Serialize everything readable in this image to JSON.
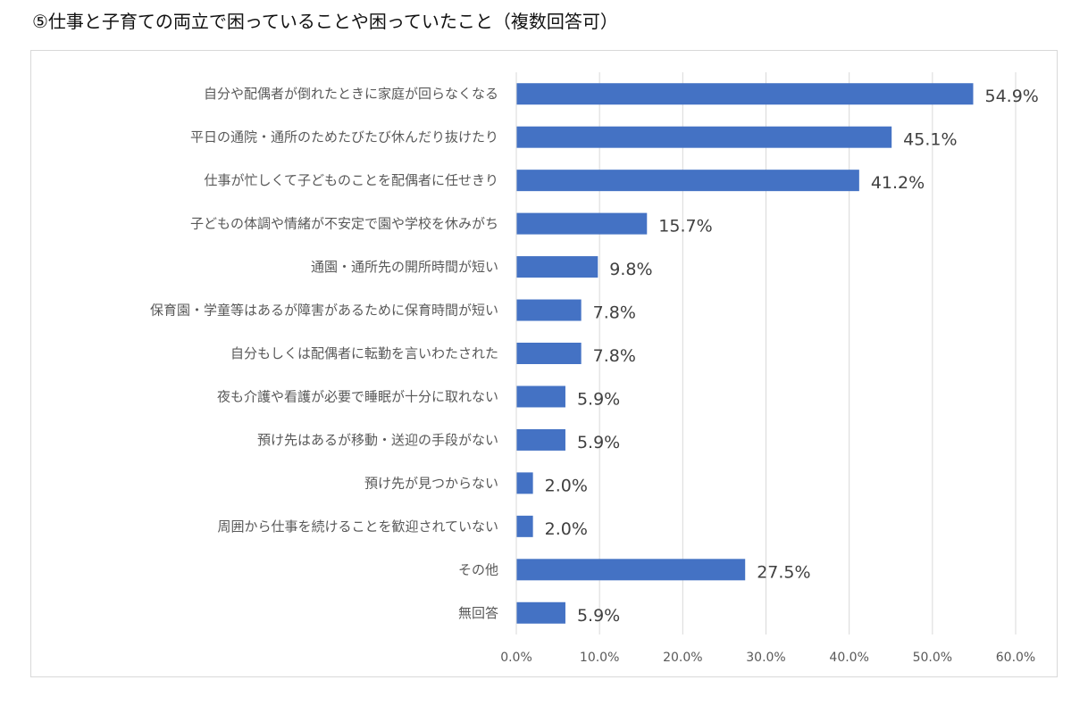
{
  "title": "⑤仕事と子育ての両立で困っていることや困っていたこと（複数回答可）",
  "colors": {
    "bar": "#4472c4",
    "grid": "#d9d9d9",
    "text": "#595959",
    "label": "#404040"
  },
  "chart_data": {
    "type": "bar",
    "orientation": "horizontal",
    "title": "⑤仕事と子育ての両立で困っていることや困っていたこと（複数回答可）",
    "categories": [
      "自分や配偶者が倒れたときに家庭が回らなくなる",
      "平日の通院・通所のためたびたび休んだり抜けたり",
      "仕事が忙しくて子どものことを配偶者に任せきり",
      "子どもの体調や情緒が不安定で園や学校を休みがち",
      "通園・通所先の開所時間が短い",
      "保育園・学童等はあるが障害があるために保育時間が短い",
      "自分もしくは配偶者に転勤を言いわたされた",
      "夜も介護や看護が必要で睡眠が十分に取れない",
      "預け先はあるが移動・送迎の手段がない",
      "預け先が見つからない",
      "周囲から仕事を続けることを歓迎されていない",
      "その他",
      "無回答"
    ],
    "values": [
      54.9,
      45.1,
      41.2,
      15.7,
      9.8,
      7.8,
      7.8,
      5.9,
      5.9,
      2.0,
      2.0,
      27.5,
      5.9
    ],
    "value_labels": [
      "54.9%",
      "45.1%",
      "41.2%",
      "15.7%",
      "9.8%",
      "7.8%",
      "7.8%",
      "5.9%",
      "5.9%",
      "2.0%",
      "2.0%",
      "27.5%",
      "5.9%"
    ],
    "xlim": [
      0,
      60
    ],
    "ticks": [
      0,
      10,
      20,
      30,
      40,
      50,
      60
    ],
    "tick_labels": [
      "0.0%",
      "10.0%",
      "20.0%",
      "30.0%",
      "40.0%",
      "50.0%",
      "60.0%"
    ],
    "grid": true,
    "legend": "none"
  }
}
